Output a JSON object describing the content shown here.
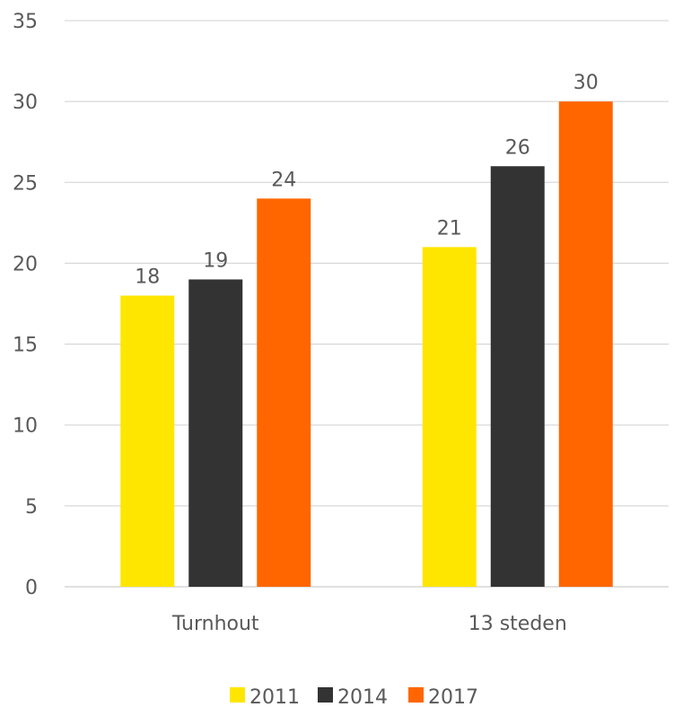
{
  "chart_data": {
    "type": "bar",
    "title": "",
    "xlabel": "",
    "ylabel": "",
    "categories": [
      "Turnhout",
      "13 steden"
    ],
    "series": [
      {
        "name": "2011",
        "color": "#FFE600",
        "values": [
          18,
          21
        ]
      },
      {
        "name": "2014",
        "color": "#333333",
        "values": [
          19,
          26
        ]
      },
      {
        "name": "2017",
        "color": "#FF6600",
        "values": [
          24,
          30
        ]
      }
    ],
    "ylim": [
      0,
      35
    ],
    "yticks": [
      "0",
      "5",
      "10",
      "15",
      "20",
      "25",
      "30",
      "35"
    ],
    "grid": true,
    "data_labels": true,
    "legend_position": "bottom"
  }
}
